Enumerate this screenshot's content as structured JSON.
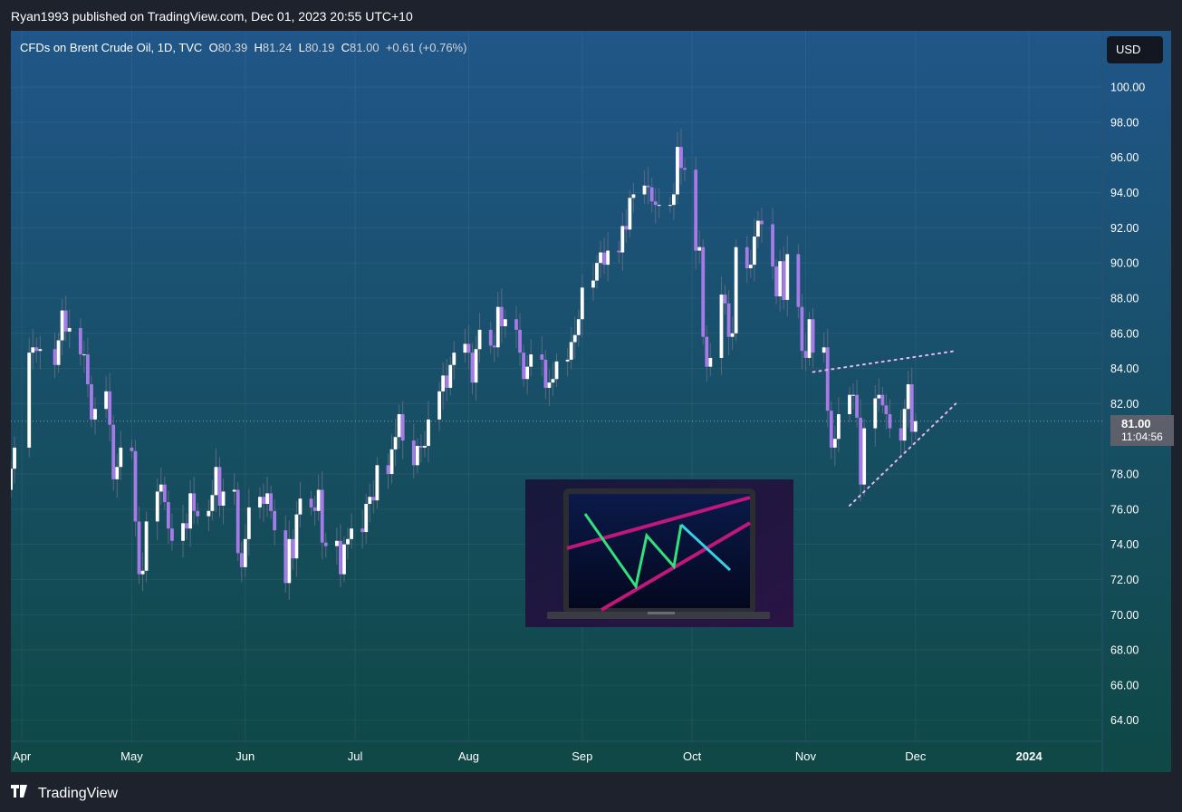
{
  "header": {
    "published": "Ryan1993 published on TradingView.com, Dec 01, 2023 20:55 UTC+10"
  },
  "legend": {
    "symbol": "CFDs on Brent Crude Oil, 1D, TVC",
    "open_label": "O",
    "open": "80.39",
    "high_label": "H",
    "high": "81.24",
    "low_label": "L",
    "low": "80.19",
    "close_label": "C",
    "close": "81.00",
    "change": "+0.61 (+0.76%)"
  },
  "currency_button": "USD",
  "price_badge": {
    "price": "81.00",
    "countdown": "11:04:56"
  },
  "footer": {
    "brand": "TradingView",
    "brand_icon": "tradingview-logo-icon"
  },
  "colors": {
    "background_top": "#205688",
    "background_bottom": "#0f4845",
    "up_candle": "#ffffff",
    "down_candle": "#a67be8",
    "trendline_dotted": "#e8b6f0",
    "thumbnail_green": "#33e07d",
    "thumbnail_cyan": "#33d2e6",
    "thumbnail_magenta": "#c0177a"
  },
  "chart_data": {
    "type": "candlestick",
    "symbol": "CFDs on Brent Crude Oil",
    "timeframe": "1D",
    "y_ticks": [
      100.0,
      98.0,
      96.0,
      94.0,
      92.0,
      90.0,
      88.0,
      86.0,
      84.0,
      82.0,
      78.0,
      76.0,
      74.0,
      72.0,
      70.0,
      68.0,
      66.0,
      64.0
    ],
    "y_tick_labels": [
      "100.00",
      "98.00",
      "96.00",
      "94.00",
      "92.00",
      "90.00",
      "88.00",
      "86.00",
      "84.00",
      "82.00",
      "78.00",
      "76.00",
      "74.00",
      "72.00",
      "70.00",
      "68.00",
      "66.00",
      "64.00"
    ],
    "x_labels": [
      "Apr",
      "May",
      "Jun",
      "Jul",
      "Aug",
      "Sep",
      "Oct",
      "Nov",
      "Dec",
      "2024"
    ],
    "x_label_dates": [
      "2023-04-01",
      "2023-05-01",
      "2023-06-01",
      "2023-07-01",
      "2023-08-01",
      "2023-09-01",
      "2023-10-01",
      "2023-11-01",
      "2023-12-01",
      "2024-01-01"
    ],
    "ylim": [
      62.8,
      103.2
    ],
    "xlim": [
      "2023-03-29",
      "2024-01-21"
    ],
    "last_price": 81.0,
    "closes": [
      {
        "date": "2023-03-29",
        "close": 78.3
      },
      {
        "date": "2023-03-30",
        "close": 79.5
      },
      {
        "date": "2023-04-03",
        "close": 84.9
      },
      {
        "date": "2023-04-04",
        "close": 85.2
      },
      {
        "date": "2023-04-05",
        "close": 85.0
      },
      {
        "date": "2023-04-06",
        "close": 85.1
      },
      {
        "date": "2023-04-10",
        "close": 84.2
      },
      {
        "date": "2023-04-11",
        "close": 85.6
      },
      {
        "date": "2023-04-12",
        "close": 87.3
      },
      {
        "date": "2023-04-13",
        "close": 86.1
      },
      {
        "date": "2023-04-14",
        "close": 86.3
      },
      {
        "date": "2023-04-17",
        "close": 84.8
      },
      {
        "date": "2023-04-18",
        "close": 84.8
      },
      {
        "date": "2023-04-19",
        "close": 83.1
      },
      {
        "date": "2023-04-20",
        "close": 81.1
      },
      {
        "date": "2023-04-21",
        "close": 81.7
      },
      {
        "date": "2023-04-24",
        "close": 82.7
      },
      {
        "date": "2023-04-25",
        "close": 80.8
      },
      {
        "date": "2023-04-26",
        "close": 77.7
      },
      {
        "date": "2023-04-27",
        "close": 78.4
      },
      {
        "date": "2023-04-28",
        "close": 79.5
      },
      {
        "date": "2023-05-01",
        "close": 79.3
      },
      {
        "date": "2023-05-02",
        "close": 75.3
      },
      {
        "date": "2023-05-03",
        "close": 72.3
      },
      {
        "date": "2023-05-04",
        "close": 72.5
      },
      {
        "date": "2023-05-05",
        "close": 75.3
      },
      {
        "date": "2023-05-08",
        "close": 77.0
      },
      {
        "date": "2023-05-09",
        "close": 77.4
      },
      {
        "date": "2023-05-10",
        "close": 76.4
      },
      {
        "date": "2023-05-11",
        "close": 74.9
      },
      {
        "date": "2023-05-12",
        "close": 74.2
      },
      {
        "date": "2023-05-15",
        "close": 75.2
      },
      {
        "date": "2023-05-16",
        "close": 74.9
      },
      {
        "date": "2023-05-17",
        "close": 76.9
      },
      {
        "date": "2023-05-18",
        "close": 75.9
      },
      {
        "date": "2023-05-19",
        "close": 75.6
      },
      {
        "date": "2023-05-22",
        "close": 75.9
      },
      {
        "date": "2023-05-23",
        "close": 76.8
      },
      {
        "date": "2023-05-24",
        "close": 78.4
      },
      {
        "date": "2023-05-25",
        "close": 76.2
      },
      {
        "date": "2023-05-26",
        "close": 77.0
      },
      {
        "date": "2023-05-29",
        "close": 77.1
      },
      {
        "date": "2023-05-30",
        "close": 73.5
      },
      {
        "date": "2023-05-31",
        "close": 72.7
      },
      {
        "date": "2023-06-01",
        "close": 74.3
      },
      {
        "date": "2023-06-02",
        "close": 76.1
      },
      {
        "date": "2023-06-05",
        "close": 76.7
      },
      {
        "date": "2023-06-06",
        "close": 76.3
      },
      {
        "date": "2023-06-07",
        "close": 76.9
      },
      {
        "date": "2023-06-08",
        "close": 75.9
      },
      {
        "date": "2023-06-09",
        "close": 74.8
      },
      {
        "date": "2023-06-12",
        "close": 71.8
      },
      {
        "date": "2023-06-13",
        "close": 74.3
      },
      {
        "date": "2023-06-14",
        "close": 73.2
      },
      {
        "date": "2023-06-15",
        "close": 75.7
      },
      {
        "date": "2023-06-16",
        "close": 76.6
      },
      {
        "date": "2023-06-19",
        "close": 76.1
      },
      {
        "date": "2023-06-20",
        "close": 75.9
      },
      {
        "date": "2023-06-21",
        "close": 77.1
      },
      {
        "date": "2023-06-22",
        "close": 74.1
      },
      {
        "date": "2023-06-23",
        "close": 73.9
      },
      {
        "date": "2023-06-26",
        "close": 74.2
      },
      {
        "date": "2023-06-27",
        "close": 72.3
      },
      {
        "date": "2023-06-28",
        "close": 74.0
      },
      {
        "date": "2023-06-29",
        "close": 74.3
      },
      {
        "date": "2023-06-30",
        "close": 74.9
      },
      {
        "date": "2023-07-03",
        "close": 74.7
      },
      {
        "date": "2023-07-04",
        "close": 76.3
      },
      {
        "date": "2023-07-05",
        "close": 76.7
      },
      {
        "date": "2023-07-06",
        "close": 76.5
      },
      {
        "date": "2023-07-07",
        "close": 78.5
      },
      {
        "date": "2023-07-10",
        "close": 78.0
      },
      {
        "date": "2023-07-11",
        "close": 79.4
      },
      {
        "date": "2023-07-12",
        "close": 80.1
      },
      {
        "date": "2023-07-13",
        "close": 81.4
      },
      {
        "date": "2023-07-14",
        "close": 79.9
      },
      {
        "date": "2023-07-17",
        "close": 78.5
      },
      {
        "date": "2023-07-18",
        "close": 79.6
      },
      {
        "date": "2023-07-19",
        "close": 79.5
      },
      {
        "date": "2023-07-20",
        "close": 79.6
      },
      {
        "date": "2023-07-21",
        "close": 81.1
      },
      {
        "date": "2023-07-24",
        "close": 82.7
      },
      {
        "date": "2023-07-25",
        "close": 83.6
      },
      {
        "date": "2023-07-26",
        "close": 82.9
      },
      {
        "date": "2023-07-27",
        "close": 84.2
      },
      {
        "date": "2023-07-28",
        "close": 84.9
      },
      {
        "date": "2023-07-31",
        "close": 85.4
      },
      {
        "date": "2023-08-01",
        "close": 84.9
      },
      {
        "date": "2023-08-02",
        "close": 83.2
      },
      {
        "date": "2023-08-03",
        "close": 85.1
      },
      {
        "date": "2023-08-04",
        "close": 86.2
      },
      {
        "date": "2023-08-07",
        "close": 85.3
      },
      {
        "date": "2023-08-08",
        "close": 85.2
      },
      {
        "date": "2023-08-09",
        "close": 87.5
      },
      {
        "date": "2023-08-10",
        "close": 86.4
      },
      {
        "date": "2023-08-11",
        "close": 86.8
      },
      {
        "date": "2023-08-14",
        "close": 86.2
      },
      {
        "date": "2023-08-15",
        "close": 84.9
      },
      {
        "date": "2023-08-16",
        "close": 83.4
      },
      {
        "date": "2023-08-17",
        "close": 84.1
      },
      {
        "date": "2023-08-18",
        "close": 84.8
      },
      {
        "date": "2023-08-21",
        "close": 84.5
      },
      {
        "date": "2023-08-22",
        "close": 82.9
      },
      {
        "date": "2023-08-23",
        "close": 83.2
      },
      {
        "date": "2023-08-24",
        "close": 83.4
      },
      {
        "date": "2023-08-25",
        "close": 84.4
      },
      {
        "date": "2023-08-28",
        "close": 84.5
      },
      {
        "date": "2023-08-29",
        "close": 85.5
      },
      {
        "date": "2023-08-30",
        "close": 85.9
      },
      {
        "date": "2023-08-31",
        "close": 86.8
      },
      {
        "date": "2023-09-01",
        "close": 88.6
      },
      {
        "date": "2023-09-04",
        "close": 89.0
      },
      {
        "date": "2023-09-05",
        "close": 90.0
      },
      {
        "date": "2023-09-06",
        "close": 90.6
      },
      {
        "date": "2023-09-07",
        "close": 89.9
      },
      {
        "date": "2023-09-08",
        "close": 90.7
      },
      {
        "date": "2023-09-11",
        "close": 90.6
      },
      {
        "date": "2023-09-12",
        "close": 92.1
      },
      {
        "date": "2023-09-13",
        "close": 91.9
      },
      {
        "date": "2023-09-14",
        "close": 93.7
      },
      {
        "date": "2023-09-15",
        "close": 93.9
      },
      {
        "date": "2023-09-18",
        "close": 94.4
      },
      {
        "date": "2023-09-19",
        "close": 94.3
      },
      {
        "date": "2023-09-20",
        "close": 93.5
      },
      {
        "date": "2023-09-21",
        "close": 93.3
      },
      {
        "date": "2023-09-22",
        "close": 93.3
      },
      {
        "date": "2023-09-25",
        "close": 93.3
      },
      {
        "date": "2023-09-26",
        "close": 93.9
      },
      {
        "date": "2023-09-27",
        "close": 96.6
      },
      {
        "date": "2023-09-28",
        "close": 95.4
      },
      {
        "date": "2023-09-29",
        "close": 95.3
      },
      {
        "date": "2023-10-02",
        "close": 90.7
      },
      {
        "date": "2023-10-03",
        "close": 90.9
      },
      {
        "date": "2023-10-04",
        "close": 85.8
      },
      {
        "date": "2023-10-05",
        "close": 84.1
      },
      {
        "date": "2023-10-06",
        "close": 84.6
      },
      {
        "date": "2023-10-09",
        "close": 88.2
      },
      {
        "date": "2023-10-10",
        "close": 87.7
      },
      {
        "date": "2023-10-11",
        "close": 85.8
      },
      {
        "date": "2023-10-12",
        "close": 86.0
      },
      {
        "date": "2023-10-13",
        "close": 90.9
      },
      {
        "date": "2023-10-16",
        "close": 89.7
      },
      {
        "date": "2023-10-17",
        "close": 89.9
      },
      {
        "date": "2023-10-18",
        "close": 91.5
      },
      {
        "date": "2023-10-19",
        "close": 92.4
      },
      {
        "date": "2023-10-20",
        "close": 92.2
      },
      {
        "date": "2023-10-23",
        "close": 89.8
      },
      {
        "date": "2023-10-24",
        "close": 88.1
      },
      {
        "date": "2023-10-25",
        "close": 90.1
      },
      {
        "date": "2023-10-26",
        "close": 87.9
      },
      {
        "date": "2023-10-27",
        "close": 90.5
      },
      {
        "date": "2023-10-30",
        "close": 87.5
      },
      {
        "date": "2023-10-31",
        "close": 85.0
      },
      {
        "date": "2023-11-01",
        "close": 84.6
      },
      {
        "date": "2023-11-02",
        "close": 86.8
      },
      {
        "date": "2023-11-03",
        "close": 84.9
      },
      {
        "date": "2023-11-06",
        "close": 85.2
      },
      {
        "date": "2023-11-07",
        "close": 81.6
      },
      {
        "date": "2023-11-08",
        "close": 79.5
      },
      {
        "date": "2023-11-09",
        "close": 80.0
      },
      {
        "date": "2023-11-10",
        "close": 81.4
      },
      {
        "date": "2023-11-13",
        "close": 82.5
      },
      {
        "date": "2023-11-14",
        "close": 82.5
      },
      {
        "date": "2023-11-15",
        "close": 81.2
      },
      {
        "date": "2023-11-16",
        "close": 77.4
      },
      {
        "date": "2023-11-17",
        "close": 80.6
      },
      {
        "date": "2023-11-20",
        "close": 82.3
      },
      {
        "date": "2023-11-21",
        "close": 82.5
      },
      {
        "date": "2023-11-22",
        "close": 81.9
      },
      {
        "date": "2023-11-23",
        "close": 81.4
      },
      {
        "date": "2023-11-24",
        "close": 80.6
      },
      {
        "date": "2023-11-27",
        "close": 79.9
      },
      {
        "date": "2023-11-28",
        "close": 81.7
      },
      {
        "date": "2023-11-29",
        "close": 83.1
      },
      {
        "date": "2023-11-30",
        "close": 80.4
      },
      {
        "date": "2023-12-01",
        "close": 81.0
      }
    ],
    "grid": true,
    "annotations": [
      {
        "type": "dotted-trendline",
        "from": {
          "date": "2023-11-03",
          "value": 83.8
        },
        "to": {
          "date": "2023-12-12",
          "value": 85.0
        }
      },
      {
        "type": "dotted-trendline",
        "from": {
          "date": "2023-11-13",
          "value": 76.2
        },
        "to": {
          "date": "2023-12-12",
          "value": 82.0
        }
      }
    ]
  }
}
